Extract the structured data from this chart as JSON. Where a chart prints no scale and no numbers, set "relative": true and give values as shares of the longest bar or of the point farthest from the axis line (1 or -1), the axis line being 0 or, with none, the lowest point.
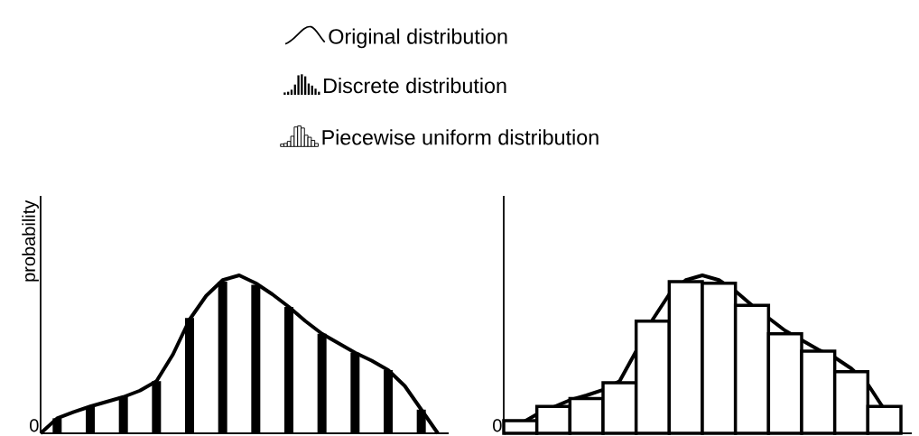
{
  "chart_data": [
    {
      "type": "line",
      "relative": true,
      "ylabel": "probability",
      "annotations": [
        "0"
      ],
      "legend": "top",
      "categories": [
        null,
        null,
        null,
        null,
        null,
        null,
        null,
        null,
        null,
        null,
        null,
        null,
        null,
        null,
        null,
        null,
        null,
        null,
        null,
        null,
        null,
        null,
        null,
        null,
        null
      ],
      "series": [
        {
          "name": "Original distribution",
          "color": "#000000",
          "values": [
            0,
            0.095,
            0.135,
            0.17,
            0.2,
            0.23,
            0.27,
            0.33,
            0.5,
            0.72,
            0.87,
            0.97,
            1.0,
            0.95,
            0.88,
            0.8,
            0.71,
            0.63,
            0.57,
            0.51,
            0.46,
            0.4,
            0.3,
            0.15,
            0
          ]
        }
      ]
    },
    {
      "type": "bar",
      "relative": true,
      "legend": "top",
      "categories": [
        null,
        null,
        null,
        null,
        null,
        null,
        null,
        null,
        null,
        null,
        null,
        null
      ],
      "series": [
        {
          "name": "Discrete distribution",
          "color": "#000000",
          "values": [
            0.099,
            0.177,
            0.24,
            0.344,
            0.76,
            1.0,
            0.979,
            0.833,
            0.656,
            0.531,
            0.417,
            0.156
          ]
        }
      ]
    },
    {
      "type": "line",
      "relative": true,
      "annotations": [
        "0"
      ],
      "categories": [
        null,
        null,
        null,
        null,
        null,
        null,
        null,
        null,
        null,
        null,
        null,
        null,
        null,
        null,
        null,
        null,
        null,
        null,
        null,
        null,
        null,
        null,
        null,
        null,
        null
      ],
      "series": [
        {
          "color": "#000000",
          "values": [
            0,
            0.06,
            0.12,
            0.165,
            0.21,
            0.24,
            0.275,
            0.33,
            0.52,
            0.72,
            0.88,
            0.97,
            1.0,
            0.97,
            0.9,
            0.81,
            0.73,
            0.65,
            0.59,
            0.53,
            0.48,
            0.41,
            0.31,
            0.15,
            0
          ]
        }
      ]
    },
    {
      "type": "bar",
      "relative": true,
      "legend": "top",
      "categories": [
        null,
        null,
        null,
        null,
        null,
        null,
        null,
        null,
        null,
        null,
        null,
        null
      ],
      "series": [
        {
          "name": "Piecewise uniform distribution",
          "color": "#ffffff",
          "values": [
            0.083,
            0.177,
            0.229,
            0.333,
            0.74,
            1.0,
            0.99,
            0.844,
            0.656,
            0.542,
            0.406,
            0.177
          ]
        }
      ]
    }
  ]
}
